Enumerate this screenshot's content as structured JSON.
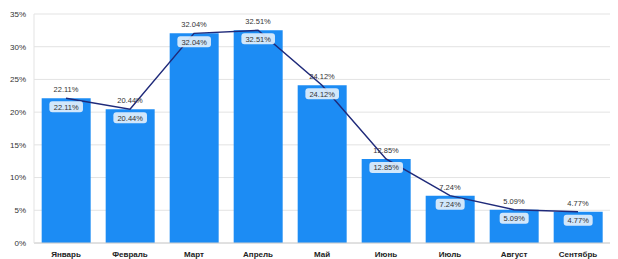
{
  "chart_data": {
    "type": "bar",
    "categories": [
      "Январь",
      "Февраль",
      "Март",
      "Апрель",
      "Май",
      "Июнь",
      "Июль",
      "Август",
      "Сентябрь"
    ],
    "series": [
      {
        "type": "bar",
        "color": "#1c8cf4",
        "values": [
          22.11,
          20.44,
          32.04,
          32.51,
          24.12,
          12.85,
          7.24,
          5.09,
          4.77
        ],
        "value_labels": [
          "22.11%",
          "20.44%",
          "32.04%",
          "32.51%",
          "24.12%",
          "12.85%",
          "7.24%",
          "5.09%",
          "4.77%"
        ],
        "data_labels": true
      },
      {
        "type": "line",
        "color": "#1f2a7a",
        "marker": "none",
        "values": [
          22.11,
          20.44,
          32.04,
          32.51,
          24.12,
          12.85,
          7.24,
          5.09,
          4.77
        ],
        "value_labels": [
          "22.11%",
          "20.44%",
          "32.04%",
          "32.51%",
          "24.12%",
          "12.85%",
          "7.24%",
          "5.09%",
          "4.77%"
        ],
        "data_labels": true
      }
    ],
    "ylim": [
      0,
      35
    ],
    "yticks": [
      {
        "value": 0,
        "label": "0%"
      },
      {
        "value": 5,
        "label": "5%"
      },
      {
        "value": 10,
        "label": "10%"
      },
      {
        "value": 15,
        "label": "15%"
      },
      {
        "value": 20,
        "label": "20%"
      },
      {
        "value": 25,
        "label": "25%"
      },
      {
        "value": 30,
        "label": "30%"
      },
      {
        "value": 35,
        "label": "35%"
      }
    ],
    "grid": true
  }
}
